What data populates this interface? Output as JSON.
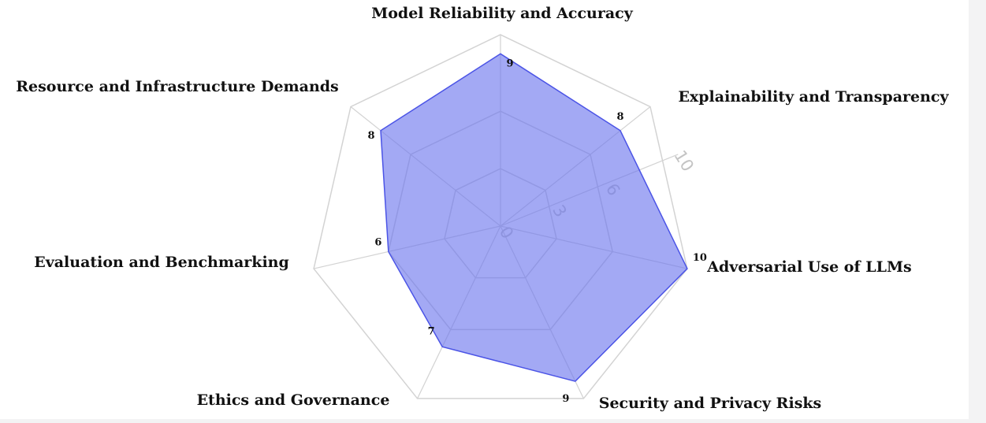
{
  "chart_data": {
    "type": "radar",
    "categories": [
      "Model Reliability and Accuracy",
      "Explainability and Transparency",
      "Adversarial Use of LLMs",
      "Security and Privacy Risks",
      "Ethics and Governance",
      "Evaluation and Benchmarking",
      "Resource and Infrastructure Demands"
    ],
    "values": [
      9,
      8,
      10,
      9,
      7,
      6,
      8
    ],
    "data_labels": [
      "9",
      "8",
      "10",
      "9",
      "7",
      "6",
      "8"
    ],
    "rlim": [
      0,
      10
    ],
    "radial_ticks": [
      0,
      3,
      6,
      10
    ],
    "radial_tick_labels": [
      "0",
      "3",
      "6",
      "10"
    ],
    "grid": true,
    "fill_color": "#6b74ee",
    "line_color": "#4b54e6",
    "grid_color": "#d3d3d3"
  }
}
